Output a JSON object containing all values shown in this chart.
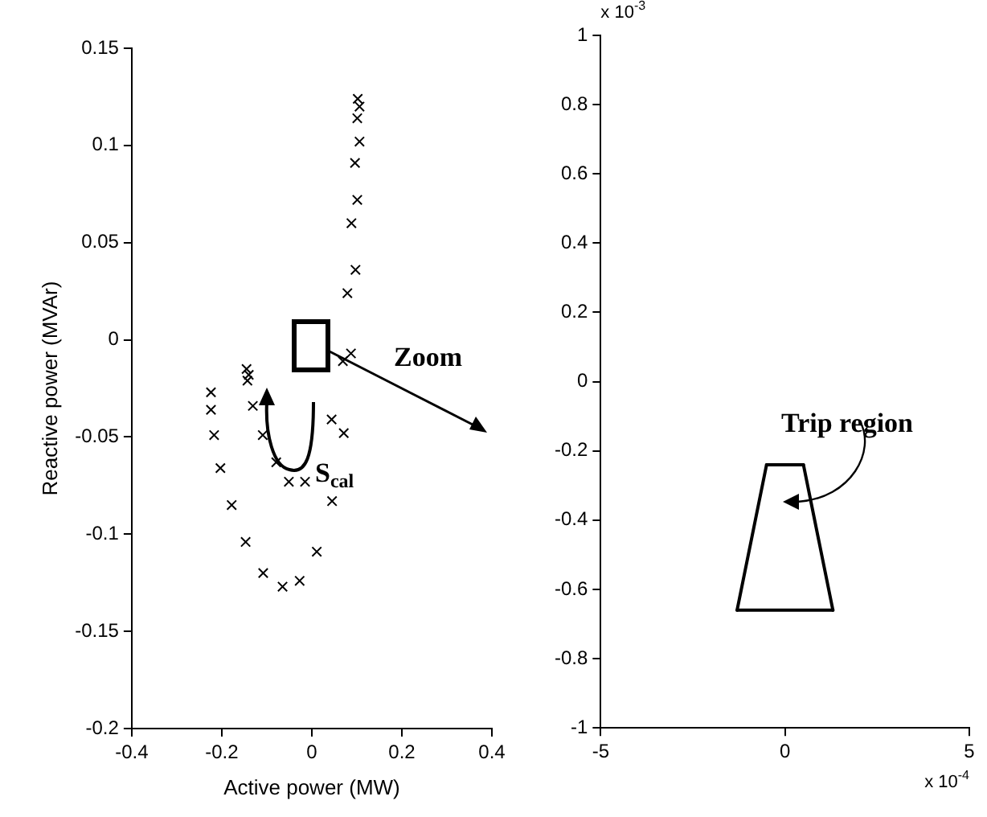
{
  "chart_data": [
    {
      "type": "scatter",
      "xlabel": "Active power (MW)",
      "ylabel": "Reactive power (MVAr)",
      "marker": "cross",
      "xlim": [
        -0.4,
        0.4
      ],
      "xticks": [
        -0.4,
        -0.2,
        0,
        0.2,
        0.4
      ],
      "ylim": [
        -0.2,
        0.15
      ],
      "yticks": [
        -0.2,
        -0.15,
        -0.1,
        -0.05,
        0,
        0.05,
        0.1,
        0.15
      ],
      "annotations": [
        "Zoom",
        "S$_{cal}$"
      ],
      "series": [
        {
          "color": "#000000",
          "x": [
            0.102,
            0.106,
            0.101,
            0.106,
            0.096,
            0.101,
            0.088,
            0.097,
            0.079,
            0.087,
            0.069,
            -0.145,
            -0.14,
            -0.143,
            -0.224,
            -0.224,
            -0.131,
            -0.217,
            -0.109,
            0.044,
            0.071,
            -0.203,
            -0.079,
            -0.051,
            -0.015,
            0.045,
            -0.178,
            -0.147,
            0.011,
            -0.108,
            -0.065,
            -0.027
          ],
          "values": [
            0.124,
            0.12,
            0.114,
            0.102,
            0.091,
            0.072,
            0.06,
            0.036,
            0.024,
            -0.007,
            -0.011,
            -0.015,
            -0.018,
            -0.021,
            -0.027,
            -0.036,
            -0.034,
            -0.049,
            -0.049,
            -0.041,
            -0.048,
            -0.066,
            -0.063,
            -0.073,
            -0.073,
            -0.083,
            -0.085,
            -0.104,
            -0.109,
            -0.12,
            -0.127,
            -0.124
          ]
        }
      ]
    },
    {
      "type": "line",
      "marker": "none",
      "xlim": [
        -5,
        5
      ],
      "xticks": [
        -5,
        0,
        5
      ],
      "ylim": [
        -1,
        1
      ],
      "yticks": [
        -1,
        -0.8,
        -0.6,
        -0.4,
        -0.2,
        0,
        0.2,
        0.4,
        0.6,
        0.8,
        1
      ],
      "annotations": [
        "x 10$^{-3}$",
        "x 10$^{-4}$",
        "Trip region"
      ],
      "series": [
        {
          "color": "#000000",
          "x": [
            -0.5,
            0.5
          ],
          "values": [
            -0.24,
            -0.24
          ]
        },
        {
          "color": "#000000",
          "x": [
            0.5,
            1.3
          ],
          "values": [
            -0.24,
            -0.66
          ]
        },
        {
          "color": "#000000",
          "x": [
            -1.3,
            1.3
          ],
          "values": [
            -0.66,
            -0.66
          ]
        },
        {
          "color": "#000000",
          "x": [
            -1.3,
            -0.5
          ],
          "values": [
            -0.66,
            -0.24
          ]
        }
      ]
    }
  ]
}
